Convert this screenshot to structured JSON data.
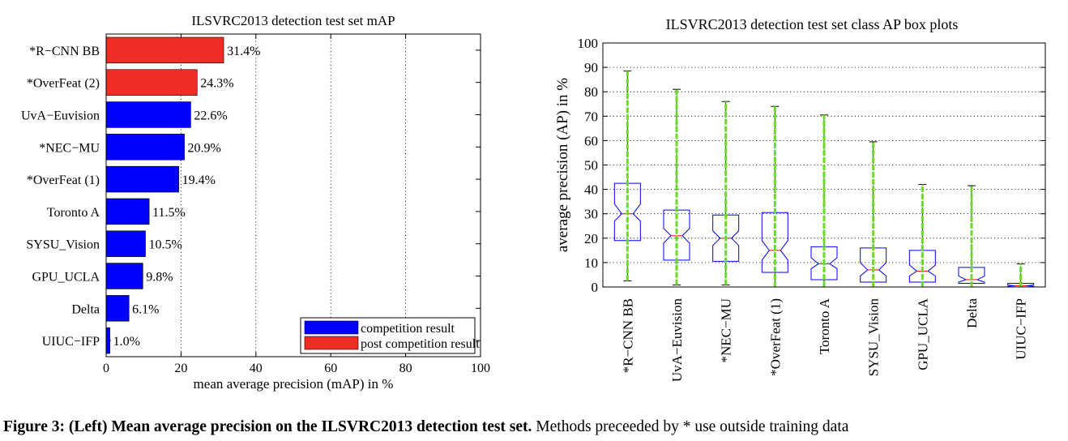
{
  "chart_data": [
    {
      "type": "bar",
      "orientation": "horizontal",
      "title": "ILSVRC2013 detection test set mAP",
      "xlabel": "mean average precision (mAP) in %",
      "ylabel": "",
      "xlim": [
        0,
        100
      ],
      "xticks": [
        "0",
        "20",
        "40",
        "60",
        "80",
        "100"
      ],
      "grid": "vertical dotted",
      "categories": [
        "*R−CNN BB",
        "*OverFeat (2)",
        "UvA−Euvision",
        "*NEC−MU",
        "*OverFeat (1)",
        "Toronto A",
        "SYSU_Vision",
        "GPU_UCLA",
        "Delta",
        "UIUC−IFP"
      ],
      "values": [
        31.4,
        24.3,
        22.6,
        20.9,
        19.4,
        11.5,
        10.5,
        9.8,
        6.1,
        1.0
      ],
      "data_labels": [
        "31.4%",
        "24.3%",
        "22.6%",
        "20.9%",
        "19.4%",
        "11.5%",
        "10.5%",
        "9.8%",
        "6.1%",
        "1.0%"
      ],
      "groups": [
        "post",
        "post",
        "competition",
        "competition",
        "competition",
        "competition",
        "competition",
        "competition",
        "competition",
        "competition"
      ],
      "colors": {
        "competition": "#0000ff",
        "post": "#ee2d24"
      },
      "legend": {
        "position": "bottom-right",
        "entries": [
          {
            "key": "competition",
            "label": "competition result"
          },
          {
            "key": "post",
            "label": "post competition result"
          }
        ]
      }
    },
    {
      "type": "box",
      "title": "ILSVRC2013 detection test set class AP box plots",
      "ylabel": "average precision (AP) in %",
      "ylim": [
        0,
        100
      ],
      "yticks": [
        "0",
        "10",
        "20",
        "30",
        "40",
        "50",
        "60",
        "70",
        "80",
        "90",
        "100"
      ],
      "grid": "horizontal dotted",
      "categories": [
        "*R−CNN BB",
        "UvA−Euvision",
        "*NEC−MU",
        "*OverFeat (1)",
        "Toronto A",
        "SYSU_Vision",
        "GPU_UCLA",
        "Delta",
        "UIUC−IFP"
      ],
      "boxes": [
        {
          "min": 2.5,
          "q1": 19,
          "median": 30,
          "q3": 42.5,
          "max": 88.5,
          "notch_lo": 27,
          "notch_hi": 34
        },
        {
          "min": 0.8,
          "q1": 11,
          "median": 21,
          "q3": 31.5,
          "max": 81,
          "notch_lo": 18,
          "notch_hi": 24
        },
        {
          "min": 0.8,
          "q1": 10.5,
          "median": 20,
          "q3": 29.5,
          "max": 76,
          "notch_lo": 17,
          "notch_hi": 23
        },
        {
          "min": 0,
          "q1": 6,
          "median": 15,
          "q3": 30.5,
          "max": 74,
          "notch_lo": 11,
          "notch_hi": 19
        },
        {
          "min": 0,
          "q1": 3,
          "median": 9.5,
          "q3": 16.5,
          "max": 70.5,
          "notch_lo": 7.5,
          "notch_hi": 12
        },
        {
          "min": 0,
          "q1": 2,
          "median": 7,
          "q3": 16,
          "max": 59.5,
          "notch_lo": 4.5,
          "notch_hi": 10
        },
        {
          "min": 0,
          "q1": 2,
          "median": 6.5,
          "q3": 15,
          "max": 42,
          "notch_lo": 4.5,
          "notch_hi": 9
        },
        {
          "min": 0,
          "q1": 1.5,
          "median": 3,
          "q3": 8,
          "max": 41.5,
          "notch_lo": 2,
          "notch_hi": 4.5
        },
        {
          "min": 0,
          "q1": 0,
          "median": 0.5,
          "q3": 1.5,
          "max": 9.5,
          "notch_lo": 0.3,
          "notch_hi": 0.8
        }
      ],
      "colors": {
        "box": "#0000ff",
        "whisker": "#000000",
        "points": "#66dd22"
      }
    }
  ],
  "caption": {
    "bold": "Figure 3: (Left) Mean average precision on the ILSVRC2013 detection test set.",
    "text": "Methods preceeded by * use outside training data"
  }
}
